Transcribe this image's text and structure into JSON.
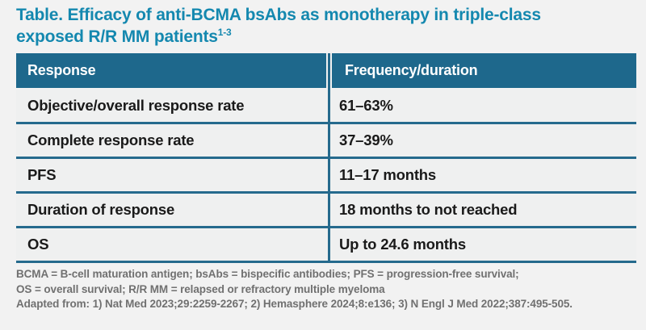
{
  "title": {
    "line1": "Table. Efficacy of anti-BCMA bsAbs as monotherapy in triple-class",
    "line2_main": "exposed R/R MM patients",
    "line2_sup": "1-3"
  },
  "table": {
    "headers": [
      "Response",
      "Frequency/duration"
    ],
    "rows": [
      {
        "response": "Objective/overall response rate",
        "value": "61–63%"
      },
      {
        "response": "Complete response rate",
        "value": "37–39%"
      },
      {
        "response": "PFS",
        "value": "11–17 months"
      },
      {
        "response": "Duration of response",
        "value": "18 months to not reached"
      },
      {
        "response": "OS",
        "value": "Up to 24.6 months"
      }
    ]
  },
  "footnotes": {
    "line1": "BCMA = B-cell maturation antigen; bsAbs = bispecific antibodies; PFS = progression-free survival;",
    "line2": "OS = overall survival; R/R MM = relapsed or refractory multiple myeloma",
    "line3": "Adapted from: 1) Nat Med 2023;29:2259-2267; 2) Hemasphere 2024;8:e136; 3) N Engl J Med 2022;387:495-505."
  },
  "colors": {
    "page_bg": "#f2f2f2",
    "row_bg": "#eff0f0",
    "teal_header": "#1e688c",
    "teal_divider": "#256a8d",
    "teal_title": "#1488af",
    "body_text": "#1a1a1a",
    "header_text": "#ffffff",
    "footnote_gray": "#707070"
  }
}
